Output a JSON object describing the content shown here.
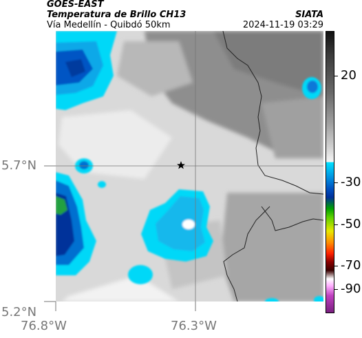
{
  "header": {
    "satellite": "GOES-EAST",
    "product": "Temperatura de Brillo CH13",
    "route": "Vía Medellín - Quibdó 50km",
    "source": "SIATA",
    "timestamp": "2024-11-19 03:29"
  },
  "map": {
    "lat_ticks": [
      "5.7°N",
      "5.2°N"
    ],
    "lon_ticks": [
      "76.8°W",
      "76.3°W"
    ],
    "marker": "star",
    "colors": {
      "cold_cloud_cyan": "#00d8f8",
      "cold_cloud_blue": "#0055c4",
      "deep_blue": "#002a90",
      "green": "#22a040",
      "gray_light": "#d6d6d6",
      "gray_dark": "#8c8c8c",
      "border_line": "#222222",
      "grid_line": "#777777"
    }
  },
  "colorbar": {
    "ticks": [
      "20",
      "-30",
      "-50",
      "-70",
      "-90"
    ]
  }
}
